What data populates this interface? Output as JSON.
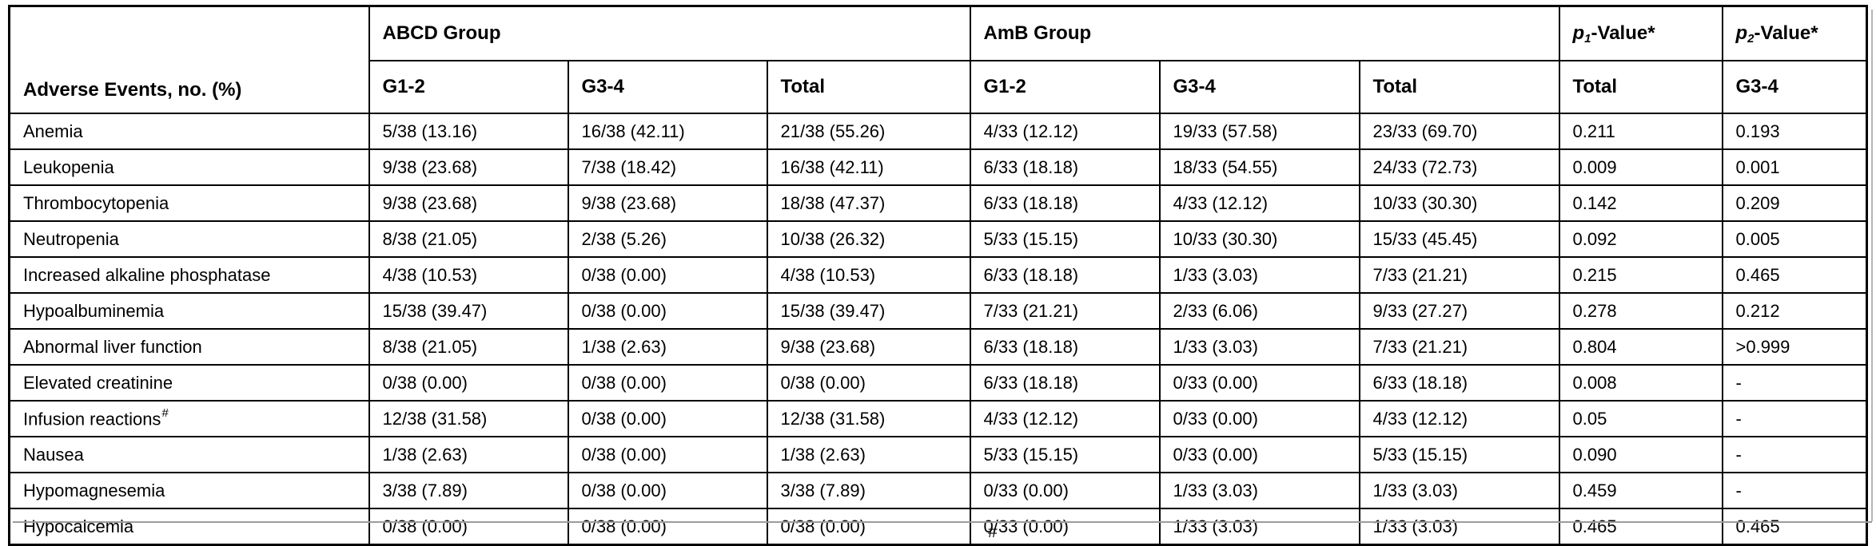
{
  "table": {
    "row_header": "Adverse Events, no. (%)",
    "groups": [
      {
        "label": "ABCD Group"
      },
      {
        "label": "AmB Group"
      }
    ],
    "p1_header": {
      "p": "p",
      "sub": "1",
      "rest": "-Value*"
    },
    "p2_header": {
      "p": "p",
      "sub": "2",
      "rest": "-Value*"
    },
    "subheaders": [
      "G1-2",
      "G3-4",
      "Total",
      "G1-2",
      "G3-4",
      "Total",
      "Total",
      "G3-4"
    ],
    "rows": [
      {
        "label": "Anemia",
        "values": [
          "5/38 (13.16)",
          "16/38 (42.11)",
          "21/38 (55.26)",
          "4/33 (12.12)",
          "19/33 (57.58)",
          "23/33 (69.70)",
          "0.211",
          "0.193"
        ]
      },
      {
        "label": "Leukopenia",
        "values": [
          "9/38 (23.68)",
          "7/38 (18.42)",
          "16/38 (42.11)",
          "6/33 (18.18)",
          "18/33 (54.55)",
          "24/33 (72.73)",
          "0.009",
          "0.001"
        ]
      },
      {
        "label": "Thrombocytopenia",
        "values": [
          "9/38 (23.68)",
          "9/38 (23.68)",
          "18/38 (47.37)",
          "6/33 (18.18)",
          "4/33 (12.12)",
          "10/33 (30.30)",
          "0.142",
          "0.209"
        ]
      },
      {
        "label": "Neutropenia",
        "values": [
          "8/38 (21.05)",
          "2/38 (5.26)",
          "10/38 (26.32)",
          "5/33 (15.15)",
          "10/33 (30.30)",
          "15/33 (45.45)",
          "0.092",
          "0.005"
        ]
      },
      {
        "label": "Increased alkaline phosphatase",
        "values": [
          "4/38 (10.53)",
          "0/38 (0.00)",
          "4/38 (10.53)",
          "6/33 (18.18)",
          "1/33 (3.03)",
          "7/33 (21.21)",
          "0.215",
          "0.465"
        ]
      },
      {
        "label": "Hypoalbuminemia",
        "values": [
          "15/38 (39.47)",
          "0/38 (0.00)",
          "15/38 (39.47)",
          "7/33 (21.21)",
          "2/33 (6.06)",
          "9/33 (27.27)",
          "0.278",
          "0.212"
        ]
      },
      {
        "label": "Abnormal liver function",
        "values": [
          "8/38 (21.05)",
          "1/38 (2.63)",
          "9/38 (23.68)",
          "6/33 (18.18)",
          "1/33 (3.03)",
          "7/33 (21.21)",
          "0.804",
          ">0.999"
        ]
      },
      {
        "label": "Elevated creatinine",
        "values": [
          "0/38 (0.00)",
          "0/38 (0.00)",
          "0/38 (0.00)",
          "6/33 (18.18)",
          "0/33 (0.00)",
          "6/33 (18.18)",
          "0.008",
          "-"
        ]
      },
      {
        "label": "Infusion reactions",
        "sup": "#",
        "values": [
          "12/38 (31.58)",
          "0/38 (0.00)",
          "12/38 (31.58)",
          "4/33 (12.12)",
          "0/33 (0.00)",
          "4/33 (12.12)",
          "0.05",
          "-"
        ]
      },
      {
        "label": "Nausea",
        "values": [
          "1/38 (2.63)",
          "0/38 (0.00)",
          "1/38 (2.63)",
          "5/33 (15.15)",
          "0/33 (0.00)",
          "5/33 (15.15)",
          "0.090",
          "-"
        ]
      },
      {
        "label": "Hypomagnesemia",
        "values": [
          "3/38 (7.89)",
          "0/38 (0.00)",
          "3/38 (7.89)",
          "0/33 (0.00)",
          "1/33 (3.03)",
          "1/33 (3.03)",
          "0.459",
          "-"
        ]
      },
      {
        "label": "Hypocalcemia",
        "values": [
          "0/38 (0.00)",
          "0/38 (0.00)",
          "0/38 (0.00)",
          "0/33 (0.00)",
          "1/33 (3.03)",
          "1/33 (3.03)",
          "0.465",
          "0.465"
        ]
      }
    ]
  },
  "footnote_marker": "#"
}
